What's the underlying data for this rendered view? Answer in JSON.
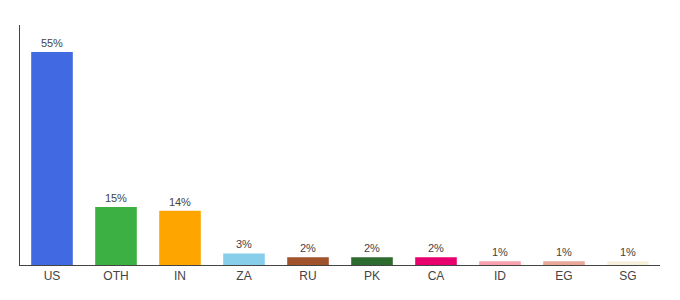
{
  "chart_data": {
    "type": "bar",
    "categories": [
      "US",
      "OTH",
      "IN",
      "ZA",
      "RU",
      "PK",
      "CA",
      "ID",
      "EG",
      "SG"
    ],
    "values": [
      55,
      15,
      14,
      3,
      2,
      2,
      2,
      1,
      1,
      1
    ],
    "value_labels": [
      "55%",
      "15%",
      "14%",
      "3%",
      "2%",
      "2%",
      "2%",
      "1%",
      "1%",
      "1%"
    ],
    "colors": [
      "#4169e1",
      "#3cb043",
      "#ffa500",
      "#87ceeb",
      "#a0522d",
      "#2e6b2e",
      "#e8006f",
      "#f8a0b0",
      "#e8a898",
      "#f5f0dc"
    ],
    "ylim": [
      0,
      62
    ],
    "data_labels": true,
    "tick_labels": "x",
    "grid": false
  }
}
